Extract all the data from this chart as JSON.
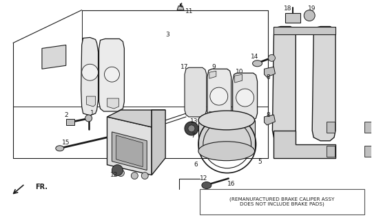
{
  "background_color": "#ffffff",
  "line_color": "#1a1a1a",
  "note_text": "(REMANUFACTURED BRAKE CALIPER ASSY\nDOES NOT INCLUDE BRAKE PADS)",
  "fr_label": "FR.",
  "figsize": [
    5.4,
    3.2
  ],
  "dpi": 100
}
